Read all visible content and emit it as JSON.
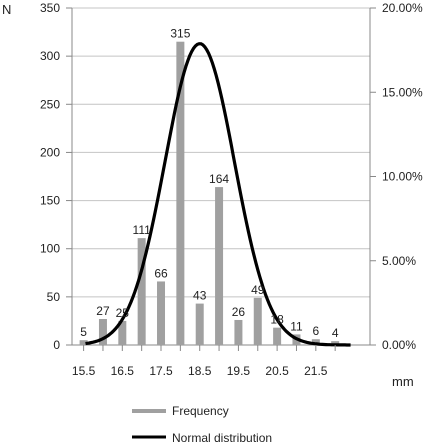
{
  "chart_data": {
    "type": "bar",
    "y_axis_title": "N",
    "x_unit": "mm",
    "categories": [
      "15.5",
      "16",
      "16.5",
      "17",
      "17.5",
      "18",
      "18.5",
      "19",
      "19.5",
      "20",
      "20.5",
      "21",
      "21.5",
      "22"
    ],
    "x_tick_labels": [
      "15.5",
      "16.5",
      "17.5",
      "18.5",
      "19.5",
      "20.5",
      "21.5"
    ],
    "series": [
      {
        "name": "Frequency",
        "values": [
          5,
          27,
          25,
          111,
          66,
          315,
          43,
          164,
          26,
          49,
          18,
          11,
          6,
          4
        ],
        "color": "#a0a0a0"
      },
      {
        "name": "Normal distribution",
        "kind": "line",
        "mean": 18.5,
        "sd": 0.9,
        "peak": 313,
        "color": "#000000"
      }
    ],
    "ylim": [
      0,
      350
    ],
    "y_ticks": [
      0,
      50,
      100,
      150,
      200,
      250,
      300,
      350
    ],
    "y2_ticks": [
      "0.00%",
      "5.00%",
      "10.00%",
      "15.00%",
      "20.00%"
    ],
    "grid": true,
    "legend_position": "bottom"
  }
}
